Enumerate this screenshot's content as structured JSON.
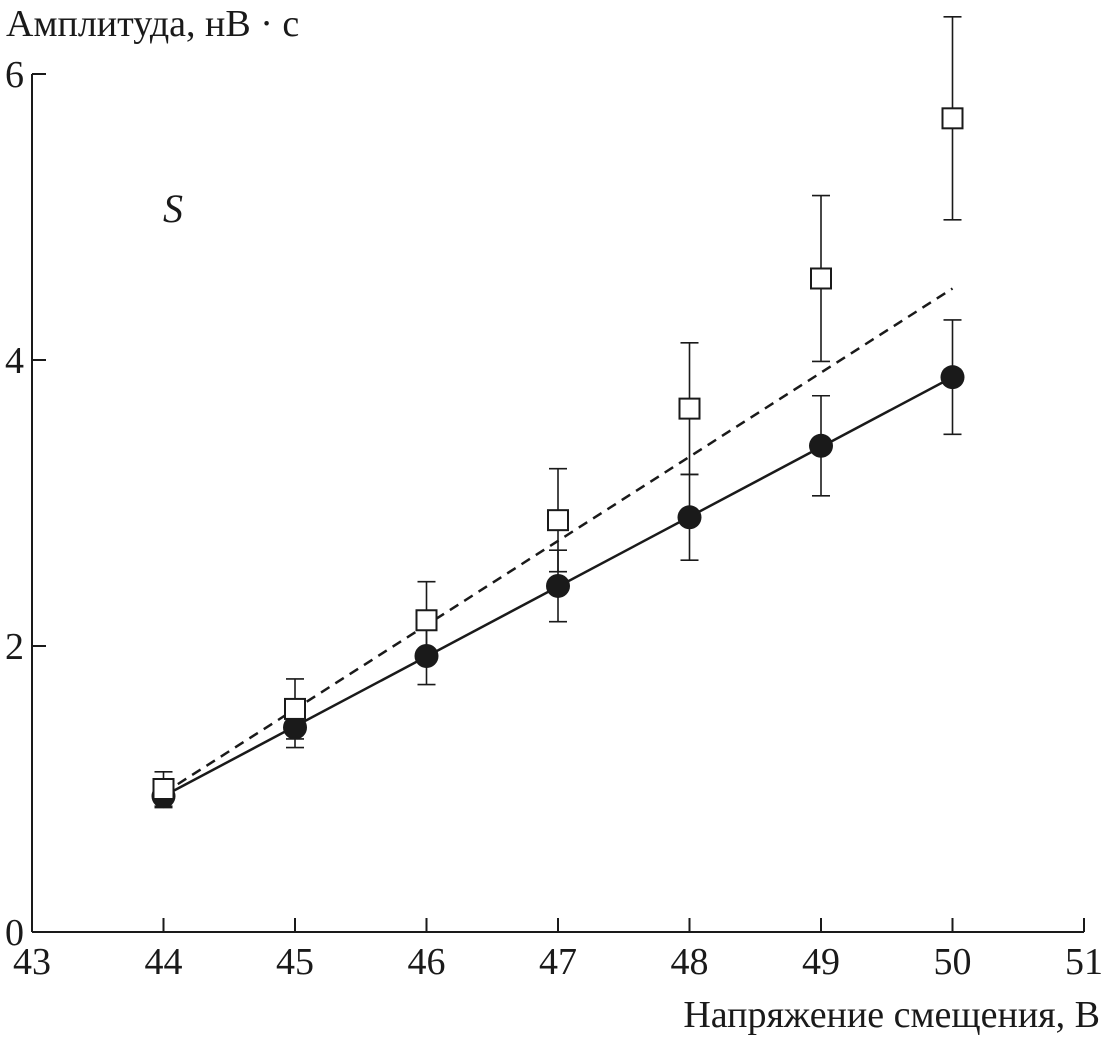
{
  "chart_data": {
    "type": "scatter",
    "ylabel": "Амплитуда, нВ · с",
    "xlabel": "Напряжение смещения, В",
    "xlim": [
      43,
      51
    ],
    "ylim": [
      0,
      6
    ],
    "x_ticks": [
      "43",
      "44",
      "45",
      "46",
      "47",
      "48",
      "49",
      "50",
      "51"
    ],
    "y_ticks": [
      "0",
      "2",
      "4",
      "6"
    ],
    "grid": false,
    "annotation": "S",
    "series": [
      {
        "marker": "filled-circle",
        "fit_line": "solid",
        "points": [
          {
            "x": 44,
            "y": 0.95,
            "err": 0.08
          },
          {
            "x": 45,
            "y": 1.43,
            "err": 0.14
          },
          {
            "x": 46,
            "y": 1.93,
            "err": 0.2
          },
          {
            "x": 47,
            "y": 2.42,
            "err": 0.25
          },
          {
            "x": 48,
            "y": 2.9,
            "err": 0.3
          },
          {
            "x": 49,
            "y": 3.4,
            "err": 0.35
          },
          {
            "x": 50,
            "y": 3.88,
            "err": 0.4
          }
        ],
        "fit": {
          "x": [
            44,
            50
          ],
          "y": [
            0.95,
            3.88
          ]
        }
      },
      {
        "marker": "open-square",
        "fit_line": "dashed",
        "points": [
          {
            "x": 44,
            "y": 1.0,
            "err": 0.12
          },
          {
            "x": 45,
            "y": 1.56,
            "err": 0.21
          },
          {
            "x": 46,
            "y": 2.18,
            "err": 0.27
          },
          {
            "x": 47,
            "y": 2.88,
            "err": 0.36
          },
          {
            "x": 48,
            "y": 3.66,
            "err": 0.46
          },
          {
            "x": 49,
            "y": 4.57,
            "err": 0.58
          },
          {
            "x": 50,
            "y": 5.69,
            "err": 0.71
          }
        ],
        "fit": {
          "x": [
            44,
            50
          ],
          "y": [
            0.97,
            4.5
          ]
        }
      }
    ],
    "colors": {
      "ink": "#1a1a1a",
      "background": "#ffffff"
    }
  }
}
